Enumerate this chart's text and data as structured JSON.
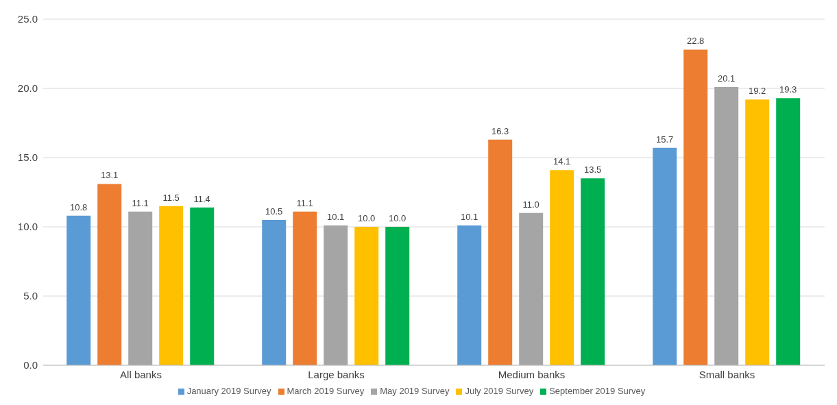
{
  "chart_data": {
    "type": "bar",
    "categories": [
      "All banks",
      "Large banks",
      "Medium banks",
      "Small banks"
    ],
    "series": [
      {
        "name": "January 2019 Survey",
        "color": "#5b9bd5",
        "values": [
          10.8,
          10.5,
          10.1,
          15.7
        ],
        "value_labels": [
          "10.8",
          "10.5",
          "10.1",
          "15.7"
        ]
      },
      {
        "name": "March 2019 Survey",
        "color": "#ed7d31",
        "values": [
          13.1,
          11.1,
          16.3,
          22.8
        ],
        "value_labels": [
          "13.1",
          "11.1",
          "16.3",
          "22.8"
        ]
      },
      {
        "name": "May 2019 Survey",
        "color": "#a5a5a5",
        "values": [
          11.1,
          10.1,
          11.0,
          20.1
        ],
        "value_labels": [
          "11.1",
          "10.1",
          "11.0",
          "20.1"
        ]
      },
      {
        "name": "July 2019 Survey",
        "color": "#ffc000",
        "values": [
          11.5,
          10.0,
          14.1,
          19.2
        ],
        "value_labels": [
          "11.5",
          "10.0",
          "14.1",
          "19.2"
        ]
      },
      {
        "name": "September 2019 Survey",
        "color": "#00b050",
        "values": [
          11.4,
          10.0,
          13.5,
          19.3
        ],
        "value_labels": [
          "11.4",
          "10.0",
          "13.5",
          "19.3"
        ]
      }
    ],
    "ylim": [
      0,
      25
    ],
    "yticks": [
      {
        "value": 0,
        "label": "0.0"
      },
      {
        "value": 5,
        "label": "5.0"
      },
      {
        "value": 10,
        "label": "10.0"
      },
      {
        "value": 15,
        "label": "15.0"
      },
      {
        "value": 20,
        "label": "20.0"
      },
      {
        "value": 25,
        "label": "25.0"
      }
    ],
    "grid": "y",
    "legend": "bottom"
  }
}
